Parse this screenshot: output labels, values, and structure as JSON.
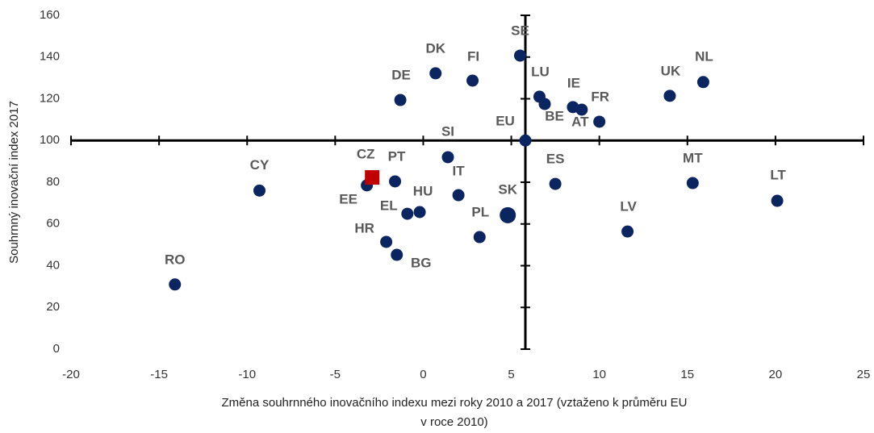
{
  "chart_data": {
    "type": "scatter",
    "y_label": "Souhrnný inovační index 2017",
    "x_label": [
      "Změna souhrnného inovačního indexu mezi roky 2010 a 2017 (vztaženo k průměru EU",
      "v roce 2010)"
    ],
    "labels": [
      "RO",
      "CY",
      "EE",
      "CZ",
      "PT",
      "DE",
      "HR",
      "BG",
      "EL",
      "HU",
      "IT",
      "SI",
      "DK",
      "FI",
      "PL",
      "SK",
      "SE",
      "EU",
      "LU",
      "BE",
      "IE",
      "AT",
      "FR",
      "UK",
      "NL",
      "MT",
      "LV",
      "ES",
      "LT"
    ],
    "x": [
      -14.1,
      -9.3,
      -3.2,
      -2.9,
      -1.6,
      -1.3,
      -2.1,
      -1.5,
      -0.9,
      -0.2,
      2.0,
      1.4,
      0.7,
      2.8,
      3.2,
      4.8,
      5.5,
      5.8,
      6.6,
      6.9,
      8.5,
      9.0,
      10.0,
      14.0,
      15.9,
      15.3,
      11.6,
      7.5,
      20.1
    ],
    "y": [
      31,
      76,
      78.5,
      82.3,
      80.4,
      119.4,
      51.4,
      45.2,
      64.9,
      65.7,
      73.8,
      92,
      132.2,
      128.7,
      53.7,
      64.2,
      140.7,
      100,
      121,
      117.5,
      116,
      114.8,
      109,
      121.4,
      128,
      79.6,
      56.4,
      79.2,
      71.1
    ],
    "color": "#0b2560",
    "highlight": {
      "index": 3,
      "color": "#c00000",
      "marker": "square"
    },
    "reference_x": 5.8,
    "reference_y": 100,
    "xlim": [
      -20,
      25
    ],
    "xticks": [
      -20,
      -15,
      -10,
      -5,
      0,
      5,
      10,
      15,
      20,
      25
    ],
    "ylim": [
      0,
      160
    ],
    "yticks": [
      0,
      20,
      40,
      60,
      80,
      100,
      120,
      140,
      160
    ]
  }
}
